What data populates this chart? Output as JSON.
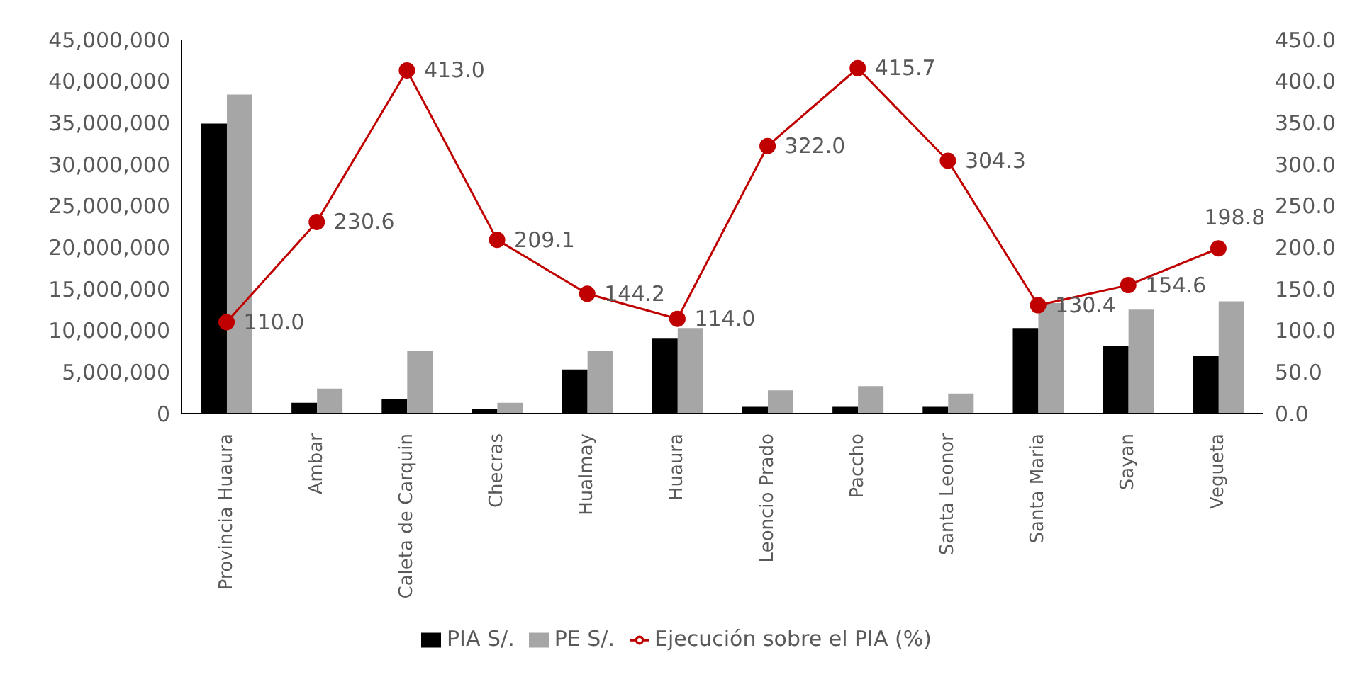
{
  "chart_data": {
    "type": "bar",
    "categories": [
      "Provincia Huaura",
      "Ambar",
      "Caleta de Carquin",
      "Checras",
      "Hualmay",
      "Huaura",
      "Leoncio Prado",
      "Paccho",
      "Santa Leonor",
      "Santa Maria",
      "Sayan",
      "Vegueta"
    ],
    "series": [
      {
        "name": "PIA S/.",
        "color": "#000000",
        "values": [
          34900000,
          1300000,
          1800000,
          600000,
          5300000,
          9100000,
          800000,
          800000,
          800000,
          10300000,
          8100000,
          6900000
        ]
      },
      {
        "name": "PE S/.",
        "color": "#a6a6a6",
        "values": [
          38400000,
          3000000,
          7500000,
          1300000,
          7500000,
          10300000,
          2800000,
          3300000,
          2400000,
          13300000,
          12500000,
          13500000
        ]
      },
      {
        "name": "Ejecución sobre el PIA (%)",
        "type": "line",
        "axis": "y2",
        "color": "#c00000",
        "marker": "circle",
        "values": [
          110.0,
          230.6,
          413.0,
          209.1,
          144.2,
          114.0,
          322.0,
          415.7,
          304.3,
          130.4,
          154.6,
          198.8
        ],
        "value_labels": [
          "110.0",
          "230.6",
          "413.0",
          "209.1",
          "144.2",
          "114.0",
          "322.0",
          "415.7",
          "304.3",
          "130.4",
          "154.6",
          "198.8"
        ]
      }
    ],
    "ylim": [
      0,
      45000000
    ],
    "yticks": [
      {
        "value": 0,
        "label": "0"
      },
      {
        "value": 5000000,
        "label": "5,000,000"
      },
      {
        "value": 10000000,
        "label": "10,000,000"
      },
      {
        "value": 15000000,
        "label": "15,000,000"
      },
      {
        "value": 20000000,
        "label": "20,000,000"
      },
      {
        "value": 25000000,
        "label": "25,000,000"
      },
      {
        "value": 30000000,
        "label": "30,000,000"
      },
      {
        "value": 35000000,
        "label": "35,000,000"
      },
      {
        "value": 40000000,
        "label": "40,000,000"
      },
      {
        "value": 45000000,
        "label": "45,000,000"
      }
    ],
    "y2lim": [
      0,
      450
    ],
    "y2ticks": [
      {
        "value": 0,
        "label": "0.0"
      },
      {
        "value": 50,
        "label": "50.0"
      },
      {
        "value": 100,
        "label": "100.0"
      },
      {
        "value": 150,
        "label": "150.0"
      },
      {
        "value": 200,
        "label": "200.0"
      },
      {
        "value": 250,
        "label": "250.0"
      },
      {
        "value": 300,
        "label": "300.0"
      },
      {
        "value": 350,
        "label": "350.0"
      },
      {
        "value": 400,
        "label": "400.0"
      },
      {
        "value": 450,
        "label": "450.0"
      }
    ],
    "grid": false,
    "legend": "bottom"
  }
}
